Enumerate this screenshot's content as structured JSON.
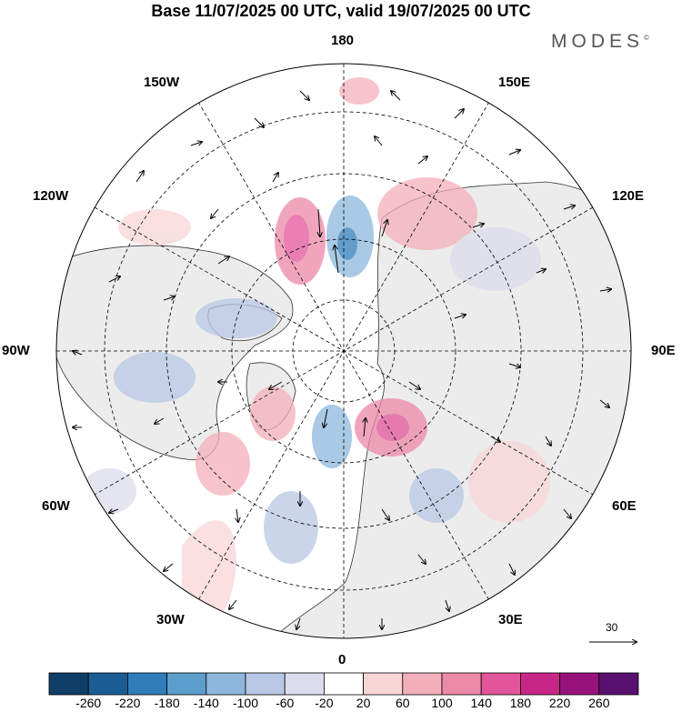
{
  "title": "Base 11/07/2025 00 UTC, valid 19/07/2025 00 UTC",
  "brand": "MODES",
  "brand_mark": "©",
  "meridian_labels": [
    "180",
    "150E",
    "120E",
    "90E",
    "60E",
    "30E",
    "0",
    "30W",
    "60W",
    "90W",
    "120W",
    "150W"
  ],
  "reference_vector": {
    "value": "30"
  },
  "colorbar": {
    "ticks": [
      "-260",
      "-220",
      "-180",
      "-140",
      "-100",
      "-60",
      "-20",
      "20",
      "60",
      "100",
      "140",
      "180",
      "220",
      "260"
    ],
    "colors": [
      "#0f3f66",
      "#1a5d94",
      "#2f7dbb",
      "#5b9dcb",
      "#8db7dc",
      "#b9c8e4",
      "#dcdcee",
      "#ffffff",
      "#f8d6d6",
      "#f4b0ba",
      "#ec88a8",
      "#e2559a",
      "#c82687",
      "#97127a",
      "#5a1070"
    ]
  }
}
